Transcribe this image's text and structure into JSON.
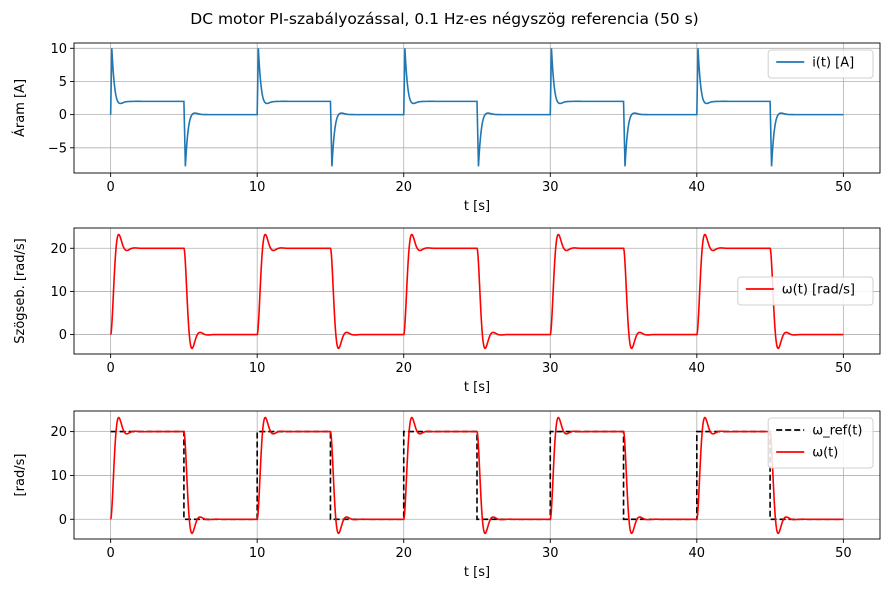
{
  "suptitle": "DC motor PI-szabályozással, 0.1 Hz-es négyszög referencia (50 s)",
  "chart_data": [
    {
      "type": "line",
      "xlabel": "t [s]",
      "ylabel": "Áram [A]",
      "xlim": [
        -2.5,
        52.5
      ],
      "ylim": [
        -8.8,
        10.8
      ],
      "xticks": [
        0,
        10,
        20,
        30,
        40,
        50
      ],
      "yticks": [
        -5,
        0,
        5,
        10
      ],
      "xtick_labels": [
        "0",
        "10",
        "20",
        "30",
        "40",
        "50"
      ],
      "ytick_labels": [
        "−5",
        "0",
        "5",
        "10"
      ],
      "grid": true,
      "legend_position": "upper right",
      "series": [
        {
          "name": "i(t) [A]",
          "color": "#1f77b4",
          "style": "solid",
          "kind": "current",
          "period": 10,
          "high_phase": {
            "start": 0,
            "steady": 2.0,
            "peak": 10.0,
            "peak_time": 0.08,
            "dip": 1.2,
            "dip_time": 0.55
          },
          "low_phase": {
            "start": 5,
            "steady": 0.0,
            "peak": -7.8,
            "peak_time": 0.1,
            "dip": 0.8,
            "dip_time": 0.65
          }
        }
      ]
    },
    {
      "type": "line",
      "xlabel": "t [s]",
      "ylabel": "Szögseb. [rad/s]",
      "xlim": [
        -2.5,
        52.5
      ],
      "ylim": [
        -4.5,
        24.7
      ],
      "xticks": [
        0,
        10,
        20,
        30,
        40,
        50
      ],
      "yticks": [
        0,
        10,
        20
      ],
      "xtick_labels": [
        "0",
        "10",
        "20",
        "30",
        "40",
        "50"
      ],
      "ytick_labels": [
        "0",
        "10",
        "20"
      ],
      "grid": true,
      "legend_position": "center right",
      "series": [
        {
          "name": "ω(t) [rad/s]",
          "color": "#ff0000",
          "style": "solid",
          "kind": "speed",
          "period": 10,
          "steady_high": 20.0,
          "steady_low": 0.0,
          "overshoot_high": 23.2,
          "overshoot_low": -3.2,
          "overshoot_time": 0.55
        }
      ]
    },
    {
      "type": "line",
      "xlabel": "t [s]",
      "ylabel": "[rad/s]",
      "xlim": [
        -2.5,
        52.5
      ],
      "ylim": [
        -4.5,
        24.7
      ],
      "xticks": [
        0,
        10,
        20,
        30,
        40,
        50
      ],
      "yticks": [
        0,
        10,
        20
      ],
      "xtick_labels": [
        "0",
        "10",
        "20",
        "30",
        "40",
        "50"
      ],
      "ytick_labels": [
        "0",
        "10",
        "20"
      ],
      "grid": true,
      "legend_position": "upper right",
      "series": [
        {
          "name": "ω_ref(t)",
          "color": "#000000",
          "style": "dashed",
          "kind": "square",
          "period": 10,
          "high": 20.0,
          "low": 0.0
        },
        {
          "name": "ω(t)",
          "color": "#ff0000",
          "style": "solid",
          "kind": "speed",
          "period": 10,
          "steady_high": 20.0,
          "steady_low": 0.0,
          "overshoot_high": 23.2,
          "overshoot_low": -3.2,
          "overshoot_time": 0.55
        }
      ]
    }
  ]
}
